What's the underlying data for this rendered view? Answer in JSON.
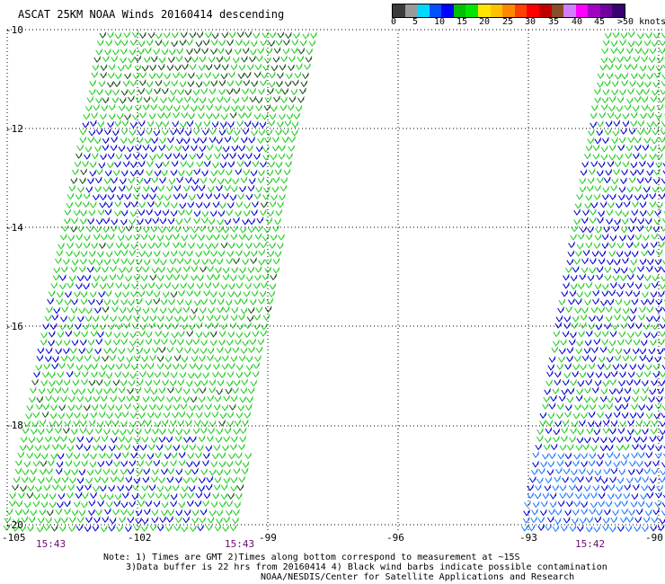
{
  "title": "ASCAT 25KM NOAA Winds 20160414 descending",
  "color_scale": {
    "colors": [
      "#3c3c3c",
      "#9a9a9a",
      "#00d8ff",
      "#0050ff",
      "#0000ff",
      "#00c000",
      "#00e600",
      "#ffe400",
      "#ffc000",
      "#ff8800",
      "#ff4000",
      "#ff0000",
      "#c00000",
      "#8a4b2a",
      "#d080ff",
      "#ff00ff",
      "#a000c0",
      "#7000a0",
      "#3a0070"
    ],
    "labels": [
      "0",
      "5",
      "10",
      "15",
      "20",
      "25",
      "30",
      "35",
      "40",
      "45",
      ">50 knots"
    ]
  },
  "map": {
    "lat_labels": [
      "-10",
      "-12",
      "-14",
      "-16",
      "-18",
      "-20"
    ],
    "lon_labels": [
      "-105",
      "-102",
      "-99",
      "-96",
      "-93",
      "-90"
    ],
    "time_labels": [
      "15:43",
      "15:43",
      "15:42"
    ],
    "barb_colors": {
      "green": "#22cc22",
      "blue": "#0000d0",
      "dark": "#1a4a1a",
      "lightblue": "#1e78ff"
    }
  },
  "notes": {
    "line1": "Note: 1) Times are GMT 2)Times along bottom correspond to measurement at ~15S",
    "line2": "3)Data buffer is 22 hrs from 20160414 4) Black wind barbs indicate possible contamination",
    "line3": "NOAA/NESDIS/Center for Satellite Applications and Research"
  }
}
